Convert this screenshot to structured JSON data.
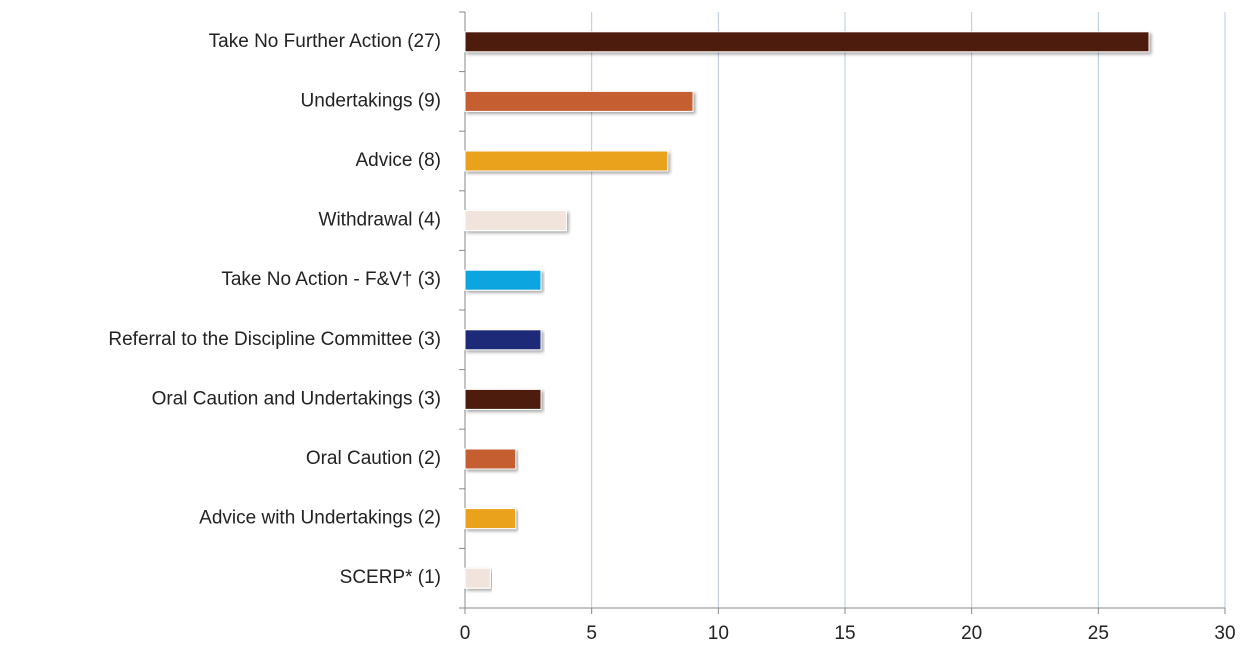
{
  "chart_data": {
    "type": "bar",
    "orientation": "horizontal",
    "categories": [
      "Take No Further Action (27)",
      "Undertakings  (9)",
      "Advice (8)",
      "Withdrawal (4)",
      "Take No Action - F&V† (3)",
      "Referral to the Discipline Committee (3)",
      "Oral Caution and Undertakings (3)",
      "Oral Caution (2)",
      "Advice with Undertakings (2)",
      "SCERP* (1)"
    ],
    "values": [
      27,
      9,
      8,
      4,
      3,
      3,
      3,
      2,
      2,
      1
    ],
    "colors": [
      "#4e1f0e",
      "#c55f32",
      "#eaa11d",
      "#f1e4dc",
      "#0aa5e0",
      "#1d2a78",
      "#4e1f0e",
      "#c55f32",
      "#eaa11d",
      "#f1e4dc"
    ],
    "xlim": [
      0,
      30
    ],
    "xticks": [
      0,
      5,
      10,
      15,
      20,
      25,
      30
    ],
    "grid": true
  }
}
